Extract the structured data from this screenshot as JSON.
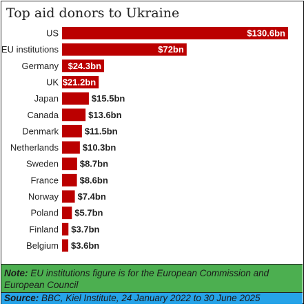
{
  "chart_data": {
    "type": "bar",
    "orientation": "horizontal",
    "title": "Top aid donors to Ukraine",
    "categories": [
      "US",
      "EU institutions",
      "Germany",
      "UK",
      "Japan",
      "Canada",
      "Denmark",
      "Netherlands",
      "Sweden",
      "France",
      "Norway",
      "Poland",
      "Finland",
      "Belgium"
    ],
    "values": [
      130.6,
      72,
      24.3,
      21.2,
      15.5,
      13.6,
      11.5,
      10.3,
      8.7,
      8.6,
      7.4,
      5.7,
      3.7,
      3.6
    ],
    "data_labels": [
      "$130.6bn",
      "$72bn",
      "$24.3bn",
      "$21.2bn",
      "$15.5bn",
      "$13.6bn",
      "$11.5bn",
      "$10.3bn",
      "$8.7bn",
      "$8.6bn",
      "$7.4bn",
      "$5.7bn",
      "$3.7bn",
      "$3.6bn"
    ],
    "bar_color": "#bb0000",
    "grid": false,
    "legend": "none"
  },
  "footer": {
    "note_lead": "Note:",
    "note_text": " EU institutions figure is for the European Commission and European Council",
    "source_lead": "Source:",
    "source_text": " BBC, Kiel Institute, 24 January 2022 to 30 June 2025",
    "note_bg": "#4caf50",
    "source_bg": "#26a3e8"
  }
}
